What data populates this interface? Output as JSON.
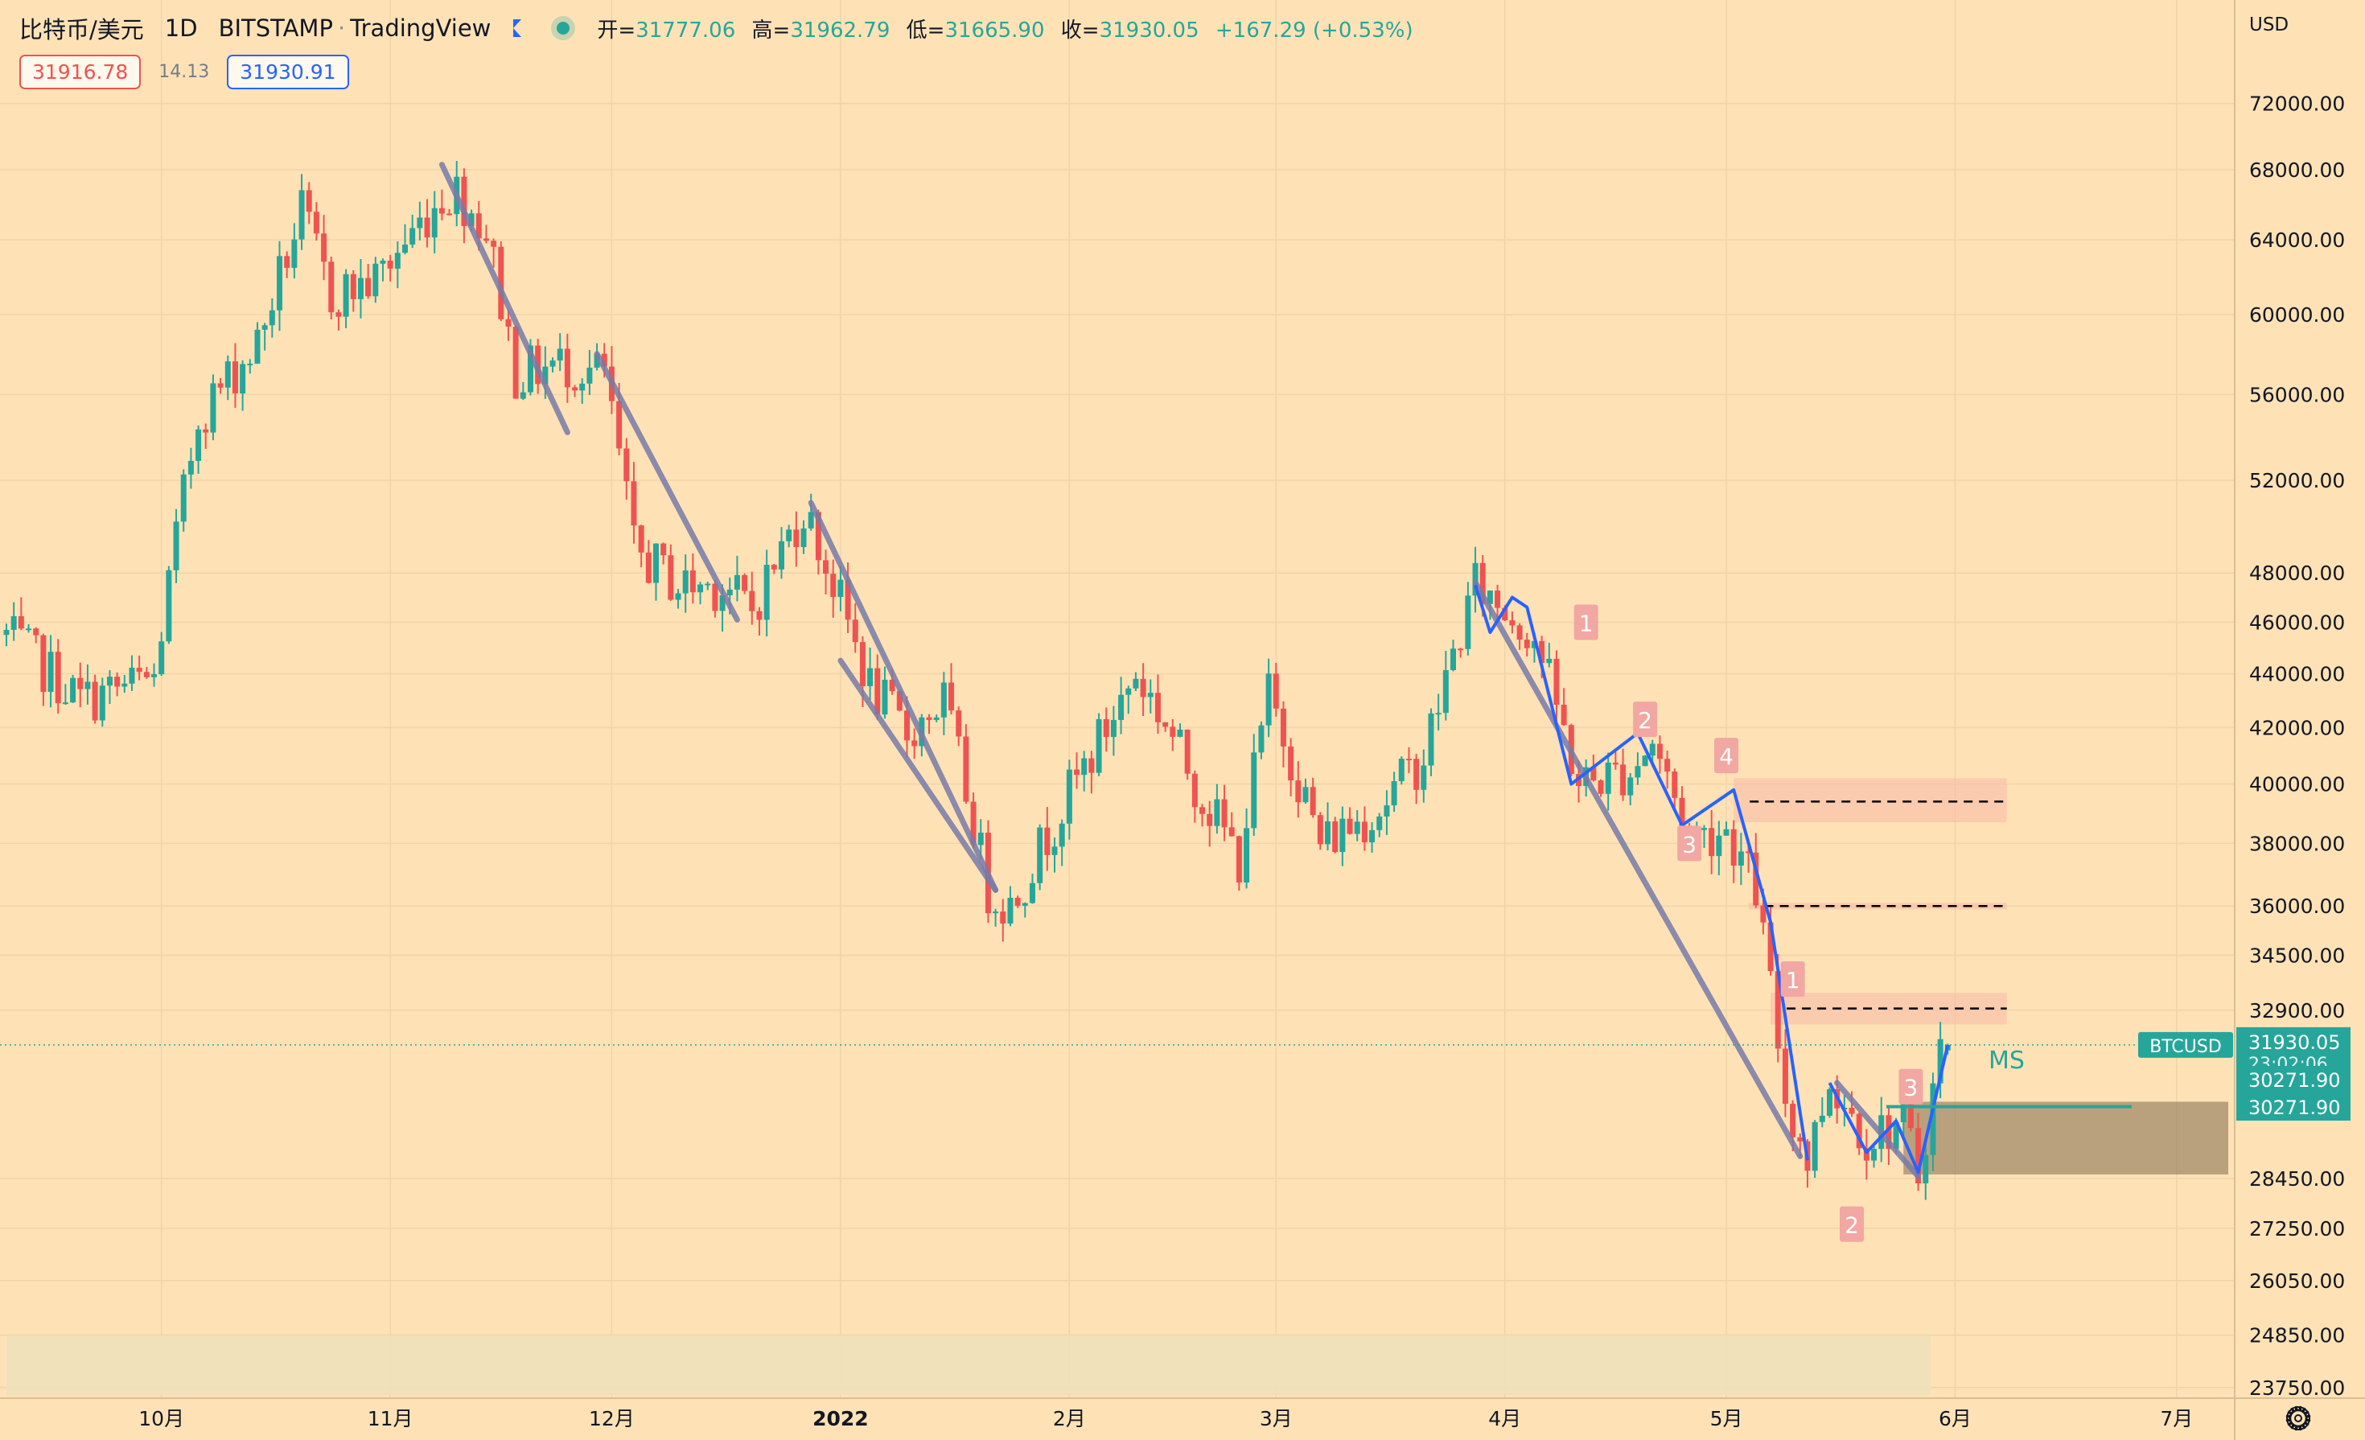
{
  "header": {
    "symbol": "比特币/美元",
    "interval": "1D",
    "exchange": "BITSTAMP",
    "source": "TradingView",
    "open_label": "开=",
    "open": "31777.06",
    "high_label": "高=",
    "high": "31962.79",
    "low_label": "低=",
    "low": "31665.90",
    "close_label": "收=",
    "close": "31930.05",
    "change": "+167.29 (+0.53%)"
  },
  "quote": {
    "bid": "31916.78",
    "spread": "14.13",
    "ask": "31930.91"
  },
  "axis": {
    "currency": "USD",
    "time_labels": [
      "10月",
      "11月",
      "12月",
      "2022",
      "2月",
      "3月",
      "4月",
      "5月",
      "6月",
      "7月"
    ],
    "price_ticks": [
      "72000.00",
      "68000.00",
      "64000.00",
      "60000.00",
      "56000.00",
      "52000.00",
      "48000.00",
      "46000.00",
      "44000.00",
      "42000.00",
      "40000.00",
      "38000.00",
      "36000.00",
      "34500.00",
      "32900.00",
      "28450.00",
      "27250.00",
      "26050.00",
      "24850.00",
      "23750.00"
    ]
  },
  "tags": {
    "symbol": "BTCUSD",
    "last_price": "31930.05",
    "countdown": "23:02:06",
    "level_top": "30271.90",
    "level_bottom": "30271.90"
  },
  "annotations": {
    "ms_label": "MS",
    "wave_numbers": [
      "1",
      "2",
      "4",
      "3",
      "1",
      "3",
      "2"
    ]
  },
  "colors": {
    "background": "#fee2b6",
    "up": "#26a69a",
    "down": "#ef5350",
    "trend": "#787ba8",
    "wave": "#2962ff",
    "zone": "#f8b8a8"
  },
  "icons": {
    "settings": "gear-icon"
  },
  "chart_data": {
    "type": "candlestick",
    "symbol": "BTCUSD",
    "interval": "1D",
    "scale": "log",
    "y_range": [
      23500,
      75000
    ],
    "x_range": [
      "2021-09-10",
      "2022-07-08"
    ],
    "month_starts": {
      "10月": "2021-10-01",
      "11月": "2021-11-01",
      "12月": "2021-12-01",
      "2022": "2022-01-01",
      "2月": "2022-02-01",
      "3月": "2022-03-01",
      "4月": "2022-04-01",
      "5月": "2022-05-01",
      "6月": "2022-06-01",
      "7月": "2022-07-01"
    },
    "price_anchors": [
      [
        "2021-09-10",
        45500
      ],
      [
        "2021-09-20",
        43000
      ],
      [
        "2021-09-30",
        43800
      ],
      [
        "2021-10-06",
        55000
      ],
      [
        "2021-10-14",
        58500
      ],
      [
        "2021-10-20",
        65500
      ],
      [
        "2021-10-24",
        61000
      ],
      [
        "2021-10-30",
        61800
      ],
      [
        "2021-11-08",
        66500
      ],
      [
        "2021-11-10",
        66800
      ],
      [
        "2021-11-14",
        64500
      ],
      [
        "2021-11-18",
        57000
      ],
      [
        "2021-11-24",
        57500
      ],
      [
        "2021-11-30",
        57000
      ],
      [
        "2021-12-04",
        49000
      ],
      [
        "2021-12-10",
        47500
      ],
      [
        "2021-12-16",
        47500
      ],
      [
        "2021-12-20",
        46500
      ],
      [
        "2021-12-27",
        50800
      ],
      [
        "2022-01-05",
        43500
      ],
      [
        "2022-01-10",
        41800
      ],
      [
        "2022-01-15",
        43000
      ],
      [
        "2022-01-21",
        36500
      ],
      [
        "2022-01-24",
        36000
      ],
      [
        "2022-02-05",
        41500
      ],
      [
        "2022-02-10",
        44000
      ],
      [
        "2022-02-14",
        42200
      ],
      [
        "2022-02-18",
        40000
      ],
      [
        "2022-02-24",
        37500
      ],
      [
        "2022-02-28",
        43200
      ],
      [
        "2022-03-07",
        38000
      ],
      [
        "2022-03-15",
        39200
      ],
      [
        "2022-03-21",
        41000
      ],
      [
        "2022-03-28",
        47500
      ],
      [
        "2022-04-05",
        45500
      ],
      [
        "2022-04-11",
        40000
      ],
      [
        "2022-04-18",
        40500
      ],
      [
        "2022-04-21",
        41500
      ],
      [
        "2022-04-26",
        38200
      ],
      [
        "2022-05-01",
        38500
      ],
      [
        "2022-05-05",
        36500
      ],
      [
        "2022-05-09",
        30500
      ],
      [
        "2022-05-12",
        28900
      ],
      [
        "2022-05-15",
        31000
      ],
      [
        "2022-05-20",
        29500
      ],
      [
        "2022-05-25",
        29900
      ],
      [
        "2022-05-27",
        28600
      ],
      [
        "2022-05-30",
        31800
      ],
      [
        "2022-05-31",
        31930
      ]
    ],
    "last": {
      "open": 31777.06,
      "high": 31962.79,
      "low": 31665.9,
      "close": 31930.05,
      "change": 167.29,
      "change_pct": 0.53
    },
    "trend_lines": [
      {
        "from": [
          "2021-11-08",
          68300
        ],
        "to": [
          "2021-11-25",
          54200
        ]
      },
      {
        "from": [
          "2021-11-29",
          58000
        ],
        "to": [
          "2021-12-18",
          46100
        ]
      },
      {
        "from": [
          "2021-12-28",
          51000
        ],
        "to": [
          "2022-01-22",
          36500
        ]
      },
      {
        "from": [
          "2022-01-01",
          44500
        ],
        "to": [
          "2022-01-22",
          36500
        ]
      },
      {
        "from": [
          "2022-03-28",
          47600
        ],
        "to": [
          "2022-05-11",
          29000
        ]
      },
      {
        "from": [
          "2022-05-16",
          30900
        ],
        "to": [
          "2022-05-27",
          28500
        ]
      }
    ],
    "wave_lines": [
      [
        [
          "2022-03-28",
          47500
        ],
        [
          "2022-03-30",
          45600
        ],
        [
          "2022-04-02",
          47000
        ],
        [
          "2022-04-04",
          46600
        ],
        [
          "2022-04-10",
          40000
        ],
        [
          "2022-04-19",
          41800
        ],
        [
          "2022-04-25",
          38600
        ],
        [
          "2022-05-02",
          39800
        ],
        [
          "2022-05-07",
          35500
        ],
        [
          "2022-05-12",
          28900
        ]
      ],
      [
        [
          "2022-05-15",
          30900
        ],
        [
          "2022-05-20",
          29100
        ],
        [
          "2022-05-24",
          29900
        ],
        [
          "2022-05-27",
          28600
        ],
        [
          "2022-05-31",
          31930
        ]
      ]
    ],
    "zones": [
      {
        "y": [
          38700,
          40200
        ],
        "from": "2022-05-02",
        "to": "2022-06-08",
        "dashed": 39400
      },
      {
        "y": [
          35900,
          36100
        ],
        "from": "2022-05-04",
        "to": "2022-06-08",
        "dashed": 36000
      },
      {
        "y": [
          32500,
          33400
        ],
        "from": "2022-05-07",
        "to": "2022-06-08",
        "dashed": 32950
      },
      {
        "y": [
          28550,
          30400
        ],
        "from": "2022-05-25",
        "to": "2022-07-08"
      }
    ],
    "wave_labels": [
      {
        "text": "1",
        "at": [
          "2022-04-12",
          46000
        ]
      },
      {
        "text": "2",
        "at": [
          "2022-04-20",
          42300
        ]
      },
      {
        "text": "4",
        "at": [
          "2022-05-01",
          41000
        ]
      },
      {
        "text": "3",
        "at": [
          "2022-04-26",
          38000
        ]
      },
      {
        "text": "1",
        "at": [
          "2022-05-10",
          33800
        ]
      },
      {
        "text": "3",
        "at": [
          "2022-05-26",
          30800
        ]
      },
      {
        "text": "2",
        "at": [
          "2022-05-18",
          27350
        ]
      }
    ]
  }
}
